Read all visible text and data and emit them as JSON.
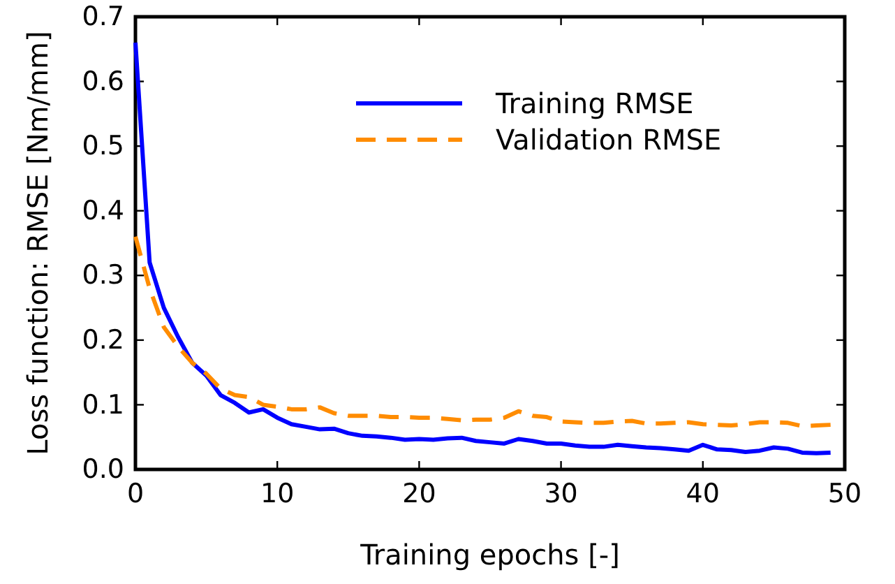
{
  "chart_data": {
    "type": "line",
    "xlabel": "Training epochs [-]",
    "ylabel": "Loss function: RMSE [Nm/mm]",
    "x": [
      0,
      1,
      2,
      3,
      4,
      5,
      6,
      7,
      8,
      9,
      10,
      11,
      12,
      13,
      14,
      15,
      16,
      17,
      18,
      19,
      20,
      21,
      22,
      23,
      24,
      25,
      26,
      27,
      28,
      29,
      30,
      31,
      32,
      33,
      34,
      35,
      36,
      37,
      38,
      39,
      40,
      41,
      42,
      43,
      44,
      45,
      46,
      47,
      48,
      49
    ],
    "series": [
      {
        "name": "Training RMSE",
        "color": "#0000ff",
        "line_style": "solid",
        "values": [
          0.66,
          0.32,
          0.25,
          0.205,
          0.165,
          0.145,
          0.115,
          0.103,
          0.088,
          0.093,
          0.08,
          0.07,
          0.066,
          0.062,
          0.063,
          0.056,
          0.052,
          0.051,
          0.049,
          0.046,
          0.047,
          0.046,
          0.048,
          0.049,
          0.044,
          0.042,
          0.04,
          0.047,
          0.044,
          0.04,
          0.04,
          0.037,
          0.035,
          0.035,
          0.038,
          0.036,
          0.034,
          0.033,
          0.031,
          0.029,
          0.038,
          0.031,
          0.03,
          0.027,
          0.029,
          0.034,
          0.032,
          0.026,
          0.025,
          0.026
        ]
      },
      {
        "name": "Validation RMSE",
        "color": "#ff8c00",
        "line_style": "dashed",
        "values": [
          0.36,
          0.28,
          0.22,
          0.19,
          0.165,
          0.148,
          0.125,
          0.115,
          0.112,
          0.1,
          0.097,
          0.093,
          0.093,
          0.096,
          0.087,
          0.083,
          0.083,
          0.083,
          0.081,
          0.081,
          0.08,
          0.08,
          0.078,
          0.076,
          0.077,
          0.077,
          0.08,
          0.09,
          0.083,
          0.081,
          0.074,
          0.073,
          0.072,
          0.072,
          0.074,
          0.075,
          0.071,
          0.071,
          0.072,
          0.073,
          0.07,
          0.069,
          0.068,
          0.07,
          0.073,
          0.073,
          0.072,
          0.067,
          0.068,
          0.069
        ]
      }
    ],
    "xlim": [
      0,
      50
    ],
    "xticks": [
      0,
      10,
      20,
      30,
      40,
      50
    ],
    "ylim": [
      0,
      0.7
    ],
    "yticks": [
      {
        "value": 0,
        "label": "0.0"
      },
      0.1,
      0.2,
      0.3,
      0.4,
      0.5,
      0.6,
      0.7
    ],
    "grid": false,
    "legend": "top right",
    "marker": "none"
  }
}
